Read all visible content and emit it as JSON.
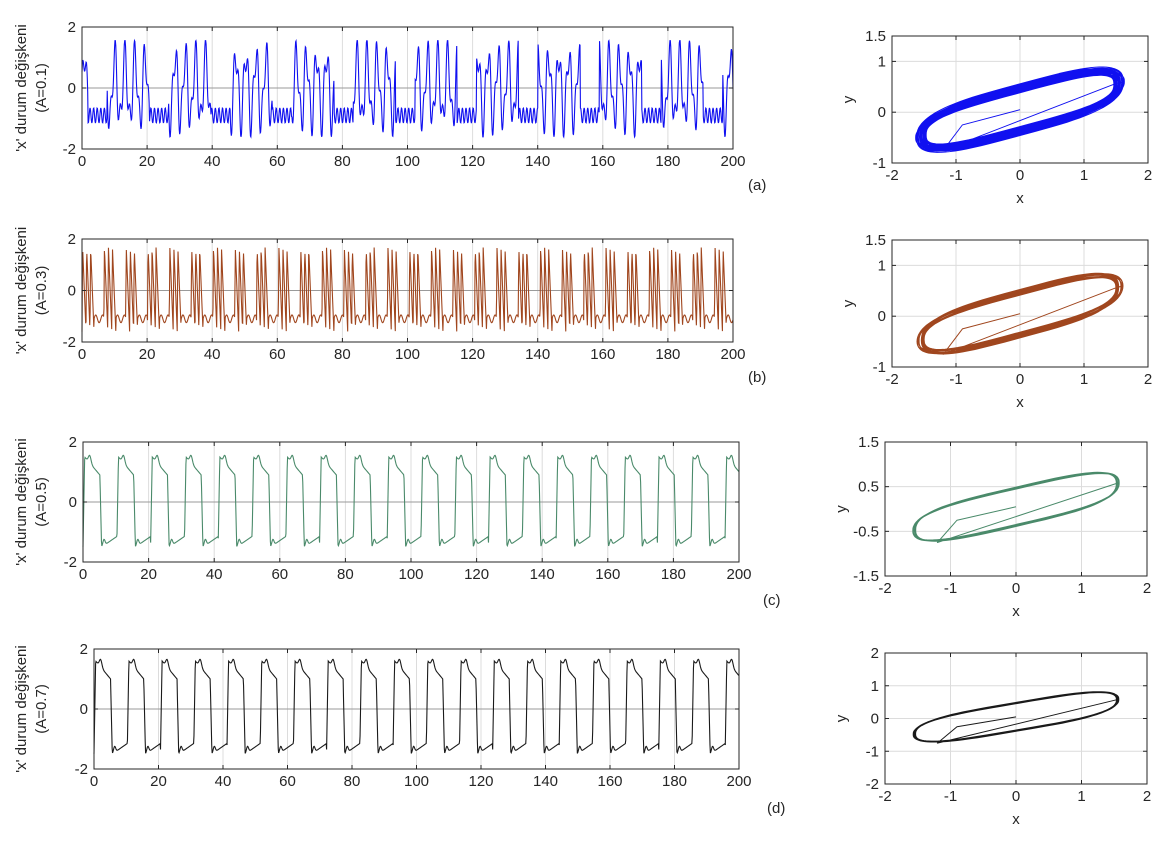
{
  "colors": {
    "a": "#1010f0",
    "b": "#a0461e",
    "c": "#4a8a6a",
    "d": "#1a1a1a",
    "axis": "#262626",
    "grid": "#dcdcdc"
  },
  "chart_data": [
    {
      "id": "ts-a",
      "type": "line",
      "ylabel": "'x' durum değişkeni",
      "ylabel2": "(A=0.1)",
      "panel_label": "(a)",
      "xlim": [
        0,
        200
      ],
      "ylim": [
        -2,
        2
      ],
      "xticks": [
        0,
        20,
        40,
        60,
        80,
        100,
        120,
        140,
        160,
        180,
        200
      ],
      "yticks": [
        -2,
        0,
        2
      ],
      "series": [
        {
          "color_key": "a",
          "amplitude": 0.1,
          "period": 3.1,
          "peak": 1.55,
          "trough": -1.6
        }
      ]
    },
    {
      "id": "pp-a",
      "type": "line",
      "xlabel": "x",
      "ylabel": "y",
      "xlim": [
        -2,
        2
      ],
      "ylim": [
        -1,
        1.5
      ],
      "xticks": [
        -2,
        -1,
        0,
        1,
        2
      ],
      "yticks": [
        -1,
        0,
        1,
        1.5
      ],
      "series": [
        {
          "color_key": "a",
          "amplitude": 0.1
        }
      ]
    },
    {
      "id": "ts-b",
      "type": "line",
      "ylabel": "'x' durum değişkeni",
      "ylabel2": "(A=0.3)",
      "panel_label": "(b)",
      "xlim": [
        0,
        200
      ],
      "ylim": [
        -2,
        2
      ],
      "xticks": [
        0,
        20,
        40,
        60,
        80,
        100,
        120,
        140,
        160,
        180,
        200
      ],
      "yticks": [
        -2,
        0,
        2
      ],
      "series": [
        {
          "color_key": "b",
          "amplitude": 0.3,
          "period": 6.7,
          "peak": 1.7,
          "trough": -1.6
        }
      ]
    },
    {
      "id": "pp-b",
      "type": "line",
      "xlabel": "x",
      "ylabel": "y",
      "xlim": [
        -2,
        2
      ],
      "ylim": [
        -1,
        1.5
      ],
      "xticks": [
        -2,
        -1,
        0,
        1,
        2
      ],
      "yticks": [
        -1,
        0,
        1,
        1.5
      ],
      "series": [
        {
          "color_key": "b",
          "amplitude": 0.3
        }
      ]
    },
    {
      "id": "ts-c",
      "type": "line",
      "ylabel": "'x' durum değişkeni",
      "ylabel2": "(A=0.5)",
      "panel_label": "(c)",
      "xlim": [
        0,
        200
      ],
      "ylim": [
        -2,
        2
      ],
      "xticks": [
        0,
        20,
        40,
        60,
        80,
        100,
        120,
        140,
        160,
        180,
        200
      ],
      "yticks": [
        -2,
        0,
        2
      ],
      "series": [
        {
          "color_key": "c",
          "amplitude": 0.5,
          "period": 10.3,
          "peak": 1.5,
          "trough": -1.5
        }
      ]
    },
    {
      "id": "pp-c",
      "type": "line",
      "xlabel": "x",
      "ylabel": "y",
      "xlim": [
        -2,
        2
      ],
      "ylim": [
        -1.5,
        1.5
      ],
      "xticks": [
        -2,
        -1,
        0,
        1,
        2
      ],
      "yticks": [
        -1.5,
        -0.5,
        0.5,
        1.5
      ],
      "series": [
        {
          "color_key": "c",
          "amplitude": 0.5
        }
      ]
    },
    {
      "id": "ts-d",
      "type": "line",
      "ylabel": "'x' durum değişkeni",
      "ylabel2": "(A=0.7)",
      "panel_label": "(d)",
      "xlim": [
        0,
        200
      ],
      "ylim": [
        -2,
        2
      ],
      "xticks": [
        0,
        20,
        40,
        60,
        80,
        100,
        120,
        140,
        160,
        180,
        200
      ],
      "yticks": [
        -2,
        0,
        2
      ],
      "series": [
        {
          "color_key": "d",
          "amplitude": 0.7,
          "period": 10.3,
          "peak": 1.6,
          "trough": -1.5
        }
      ]
    },
    {
      "id": "pp-d",
      "type": "line",
      "xlabel": "x",
      "ylabel": "y",
      "xlim": [
        -2,
        2
      ],
      "ylim": [
        -2,
        2
      ],
      "xticks": [
        -2,
        -1,
        0,
        1,
        2
      ],
      "yticks": [
        -2,
        -1,
        0,
        1,
        2
      ],
      "series": [
        {
          "color_key": "d",
          "amplitude": 0.7
        }
      ]
    }
  ]
}
